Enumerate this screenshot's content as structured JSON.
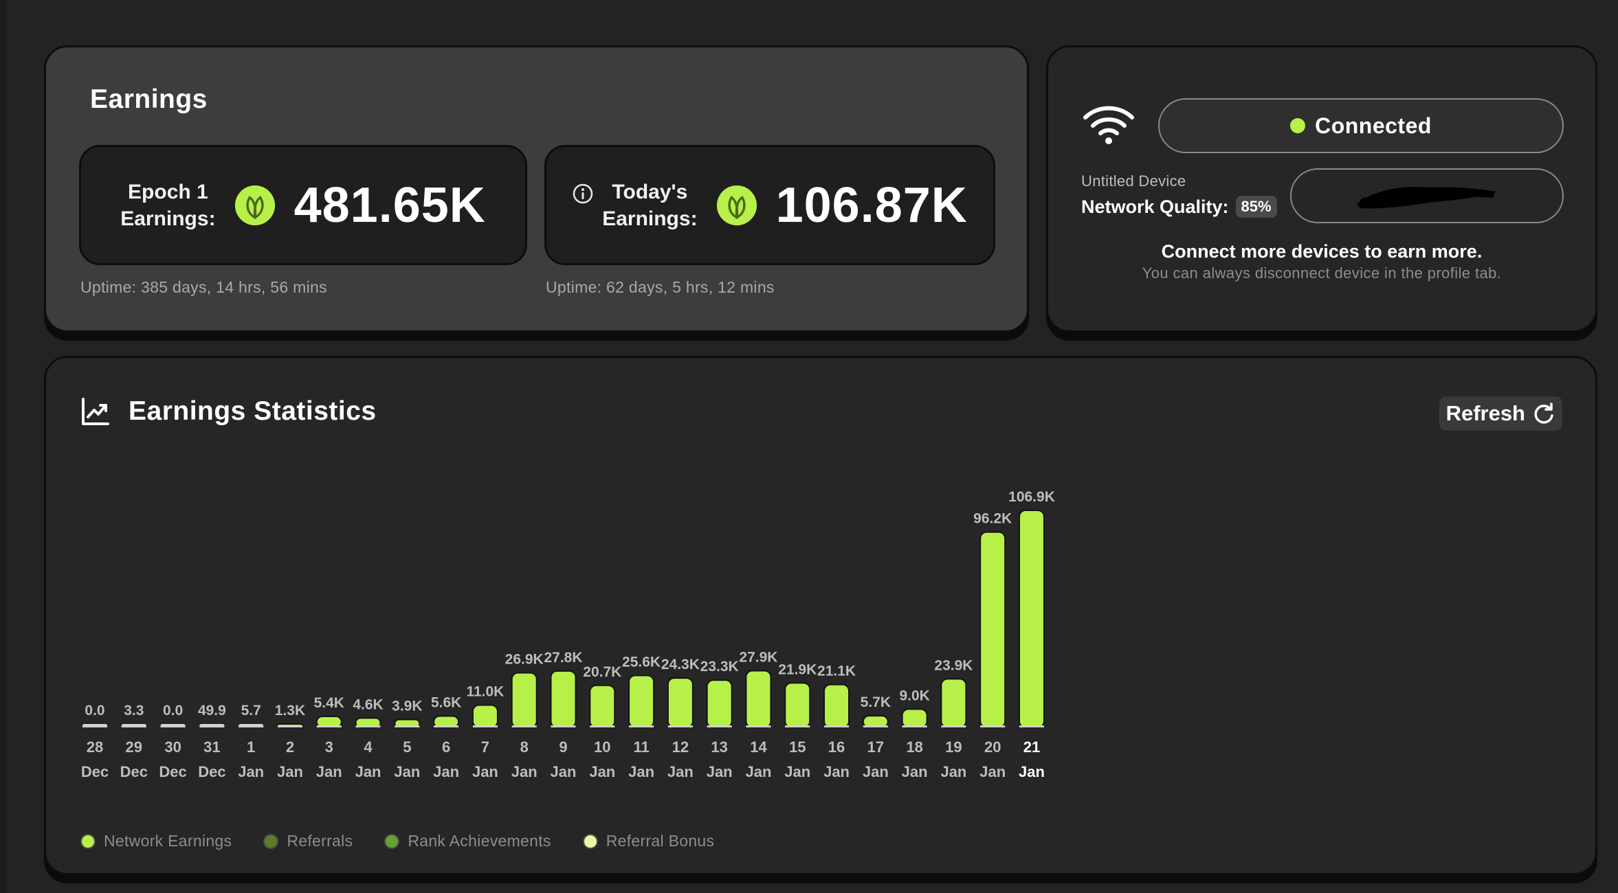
{
  "earnings": {
    "title": "Earnings",
    "epoch": {
      "label_line1": "Epoch 1",
      "label_line2": "Earnings:",
      "value": "481.65K",
      "uptime": "Uptime: 385 days, 14 hrs, 56 mins"
    },
    "today": {
      "label_line1": "Today's",
      "label_line2": "Earnings:",
      "value": "106.87K",
      "uptime": "Uptime: 62 days, 5 hrs, 12 mins"
    },
    "icons": {
      "coin": "leaf-coin-icon",
      "info": "info-icon"
    }
  },
  "device": {
    "status": "Connected",
    "device_name": "Untitled Device",
    "network_quality_label": "Network Quality:",
    "network_quality_value": "85%",
    "connect_more": "Connect more devices to earn more.",
    "disconnect_note": "You can always disconnect device in the profile tab.",
    "icons": {
      "wifi": "wifi-icon"
    }
  },
  "stats": {
    "title": "Earnings Statistics",
    "refresh_label": "Refresh"
  },
  "colors": {
    "accent": "#b8f04a",
    "referrals": "#5a7d2a",
    "rank_achievements": "#6aa034",
    "referral_bonus": "#f0f7a0",
    "card_bg": "#262626",
    "earnings_card_bg": "#3d3d3d"
  },
  "chart_data": {
    "type": "bar",
    "categories": [
      [
        "28",
        "Dec"
      ],
      [
        "29",
        "Dec"
      ],
      [
        "30",
        "Dec"
      ],
      [
        "31",
        "Dec"
      ],
      [
        "1",
        "Jan"
      ],
      [
        "2",
        "Jan"
      ],
      [
        "3",
        "Jan"
      ],
      [
        "4",
        "Jan"
      ],
      [
        "5",
        "Jan"
      ],
      [
        "6",
        "Jan"
      ],
      [
        "7",
        "Jan"
      ],
      [
        "8",
        "Jan"
      ],
      [
        "9",
        "Jan"
      ],
      [
        "10",
        "Jan"
      ],
      [
        "11",
        "Jan"
      ],
      [
        "12",
        "Jan"
      ],
      [
        "13",
        "Jan"
      ],
      [
        "14",
        "Jan"
      ],
      [
        "15",
        "Jan"
      ],
      [
        "16",
        "Jan"
      ],
      [
        "17",
        "Jan"
      ],
      [
        "18",
        "Jan"
      ],
      [
        "19",
        "Jan"
      ],
      [
        "20",
        "Jan"
      ],
      [
        "21",
        "Jan"
      ]
    ],
    "values": [
      0.0,
      3.3,
      0.0,
      49.9,
      5.7,
      1300,
      5400,
      4600,
      3900,
      5600,
      11000,
      26900,
      27800,
      20700,
      25600,
      24300,
      23300,
      27900,
      21900,
      21100,
      5700,
      9000,
      23900,
      96200,
      106900
    ],
    "value_labels": [
      "0.0",
      "3.3",
      "0.0",
      "49.9",
      "5.7",
      "1.3K",
      "5.4K",
      "4.6K",
      "3.9K",
      "5.6K",
      "11.0K",
      "26.9K",
      "27.8K",
      "20.7K",
      "25.6K",
      "24.3K",
      "23.3K",
      "27.9K",
      "21.9K",
      "21.1K",
      "5.7K",
      "9.0K",
      "23.9K",
      "96.2K",
      "106.9K"
    ],
    "highlight_index": 24,
    "series": [
      {
        "name": "Network Earnings"
      },
      {
        "name": "Referrals"
      },
      {
        "name": "Rank Achievements"
      },
      {
        "name": "Referral Bonus"
      }
    ],
    "ylim": [
      0,
      106900
    ],
    "grid": false,
    "legend_position": "bottom-left"
  }
}
